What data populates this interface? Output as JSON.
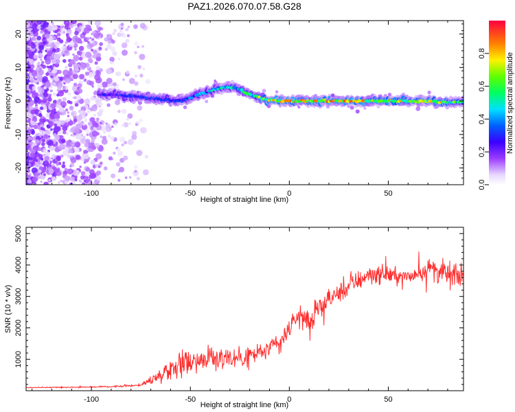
{
  "title": "PAZ1.2026.070.07.58.G28",
  "chart_data": [
    {
      "type": "heatmap",
      "xlabel": "Height of straight line (km)",
      "ylabel": "Frequency (Hz)",
      "xlim": [
        -133,
        88
      ],
      "ylim": [
        -25,
        24
      ],
      "xticks": [
        -100,
        -50,
        0,
        50
      ],
      "xtick_labels": [
        "-100",
        "-50",
        "0",
        "50"
      ],
      "yticks": [
        -20,
        -10,
        0,
        10,
        20
      ],
      "ytick_labels": [
        "-20",
        "-10",
        "0",
        "10",
        "20"
      ],
      "colorbar": {
        "label": "Normalized spectral amplitude",
        "range": [
          0,
          1
        ],
        "ticks": [
          0,
          0.2,
          0.4,
          0.6,
          0.8
        ],
        "tick_labels": [
          "0.0",
          "0.2",
          "0.4",
          "0.6",
          "0.8"
        ]
      },
      "ridge": {
        "description_points_x": [
          -95,
          -80,
          -65,
          -55,
          -45,
          -35,
          -28,
          -20,
          -12,
          -5,
          0,
          10,
          20,
          30,
          40,
          50,
          60,
          70,
          80,
          88
        ],
        "frequency_y": [
          2,
          1.5,
          0.5,
          0,
          2,
          4,
          4,
          2,
          0.5,
          0,
          0,
          0,
          0,
          0,
          0,
          0,
          0,
          0,
          -0.5,
          0
        ],
        "peak_amplitude": [
          0.3,
          0.35,
          0.35,
          0.35,
          0.45,
          0.55,
          0.55,
          0.6,
          0.85,
          0.9,
          0.9,
          0.85,
          0.9,
          0.9,
          0.85,
          0.85,
          0.8,
          0.85,
          0.8,
          0.6
        ]
      },
      "noise_region_x": [
        -133,
        -70
      ]
    },
    {
      "type": "line",
      "xlabel": "Height of straight line (km)",
      "ylabel": "SNR (10 * v/v)",
      "xlim": [
        -133,
        88
      ],
      "ylim": [
        0,
        5200
      ],
      "xticks": [
        -100,
        -50,
        0,
        50
      ],
      "xtick_labels": [
        "-100",
        "-50",
        "0",
        "50"
      ],
      "yticks": [
        1000,
        2000,
        3000,
        4000,
        5000
      ],
      "ytick_labels": [
        "1000",
        "2000",
        "3000",
        "4000",
        "5000"
      ],
      "series_color": "#ff2a2a",
      "trend_x": [
        -133,
        -110,
        -90,
        -75,
        -65,
        -55,
        -45,
        -35,
        -25,
        -15,
        -5,
        0,
        5,
        10,
        20,
        30,
        40,
        50,
        60,
        70,
        80,
        88
      ],
      "trend_y": [
        100,
        110,
        130,
        180,
        500,
        900,
        1000,
        1050,
        1050,
        1200,
        1500,
        2000,
        2400,
        2200,
        2900,
        3300,
        3700,
        3700,
        3600,
        3900,
        3700,
        3600
      ],
      "noise_amplitude": [
        20,
        25,
        30,
        60,
        350,
        600,
        550,
        550,
        550,
        500,
        400,
        500,
        500,
        600,
        450,
        450,
        500,
        400,
        350,
        550,
        600,
        500
      ]
    }
  ]
}
